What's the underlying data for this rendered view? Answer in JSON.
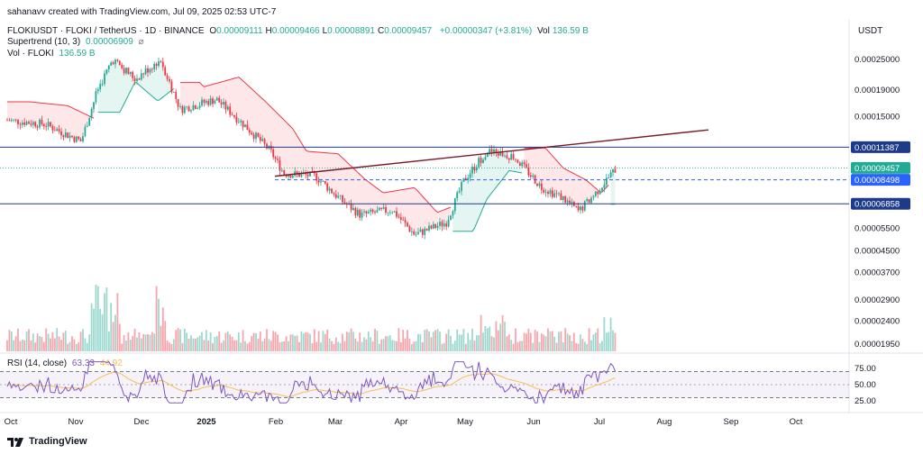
{
  "header": {
    "credit": "sahanavv created with TradingView.com, Jul 09, 2025 02:53 UTC-7",
    "symbol": "FLOKIUSDT · FLOKI / TetherUS · 1D · BINANCE",
    "ohlc": [
      {
        "k": "O",
        "v": "0.00009111"
      },
      {
        "k": "H",
        "v": "0.00009466"
      },
      {
        "k": "L",
        "v": "0.00008891"
      },
      {
        "k": "C",
        "v": "0.00009457"
      }
    ],
    "change": "+0.00000347 (+3.81%)",
    "vol_label": "Vol",
    "vol_value": "136.59 B",
    "supertrend_label": "Supertrend (10, 3)",
    "supertrend_value": "0.00006909",
    "supertrend_icon": "hidden-eye-icon",
    "vol_indicator_label": "Vol · FLOKI",
    "vol_indicator_value": "136.59 B",
    "rsi_label": "RSI (14, close)",
    "rsi_value": "63.33",
    "rsi_ma_value": "44.92"
  },
  "price_axis": {
    "unit": "USDT",
    "ticks": [
      "0.00025000",
      "0.00019000",
      "0.00015000",
      "0.00005500",
      "0.00004500",
      "0.00003700",
      "0.00002900",
      "0.00002400",
      "0.00001950"
    ]
  },
  "price_labels": [
    {
      "value": "0.00011387",
      "color": "#1e3a8a",
      "text_color": "#ffffff"
    },
    {
      "value": "0.00009457",
      "color": "#22ab94",
      "text_color": "#ffffff"
    },
    {
      "value": "0.00008498",
      "color": "#2962ff",
      "text_color": "#ffffff"
    },
    {
      "value": "0.00006858",
      "color": "#1e3a8a",
      "text_color": "#ffffff"
    }
  ],
  "rsi_axis": {
    "ticks": [
      "75.00",
      "50.00",
      "25.00"
    ]
  },
  "time_axis": {
    "ticks": [
      "Oct",
      "Nov",
      "Dec",
      "2025",
      "Feb",
      "Mar",
      "Apr",
      "May",
      "Jun",
      "Jul",
      "Aug",
      "Sep",
      "Oct"
    ]
  },
  "footer": {
    "brand": "TradingView",
    "logo_icon": "tradingview-logo-icon"
  },
  "colors": {
    "up": "#22ab94",
    "down": "#f23645",
    "line": "#1e3a8a",
    "trend": "#7b1a2a",
    "rsi": "#7e57c2",
    "rsi_ma": "#f5c04f"
  },
  "chart_data": {
    "type": "candlestick",
    "symbol": "FLOKIUSDT",
    "interval": "1D",
    "scale": "log",
    "horizontal_levels": [
      0.00011387,
      8.498e-05,
      6.858e-05
    ],
    "last_close": 9.457e-05,
    "supertrend_last": 6.909e-05,
    "volume_last": "136.59 B",
    "rsi_last": 63.33,
    "rsi_ma_last": 44.92,
    "rsi_band": [
      30,
      70
    ],
    "trendline": [
      [
        8.8e-05,
        "2025-02-01"
      ],
      [
        0.000131,
        "2025-08-20"
      ]
    ],
    "approx_monthly_closes": [
      {
        "month": "Oct",
        "close": 0.000145
      },
      {
        "month": "Nov",
        "close": 0.00019
      },
      {
        "month": "Dec",
        "close": 0.00019
      },
      {
        "month": "Jan",
        "close": 0.00013
      },
      {
        "month": "Feb",
        "close": 9e-05
      },
      {
        "month": "Mar",
        "close": 6.5e-05
      },
      {
        "month": "Apr",
        "close": 6.5e-05
      },
      {
        "month": "May",
        "close": 9.5e-05
      },
      {
        "month": "Jun",
        "close": 7e-05
      },
      {
        "month": "Jul",
        "close": 9.5e-05
      }
    ]
  }
}
